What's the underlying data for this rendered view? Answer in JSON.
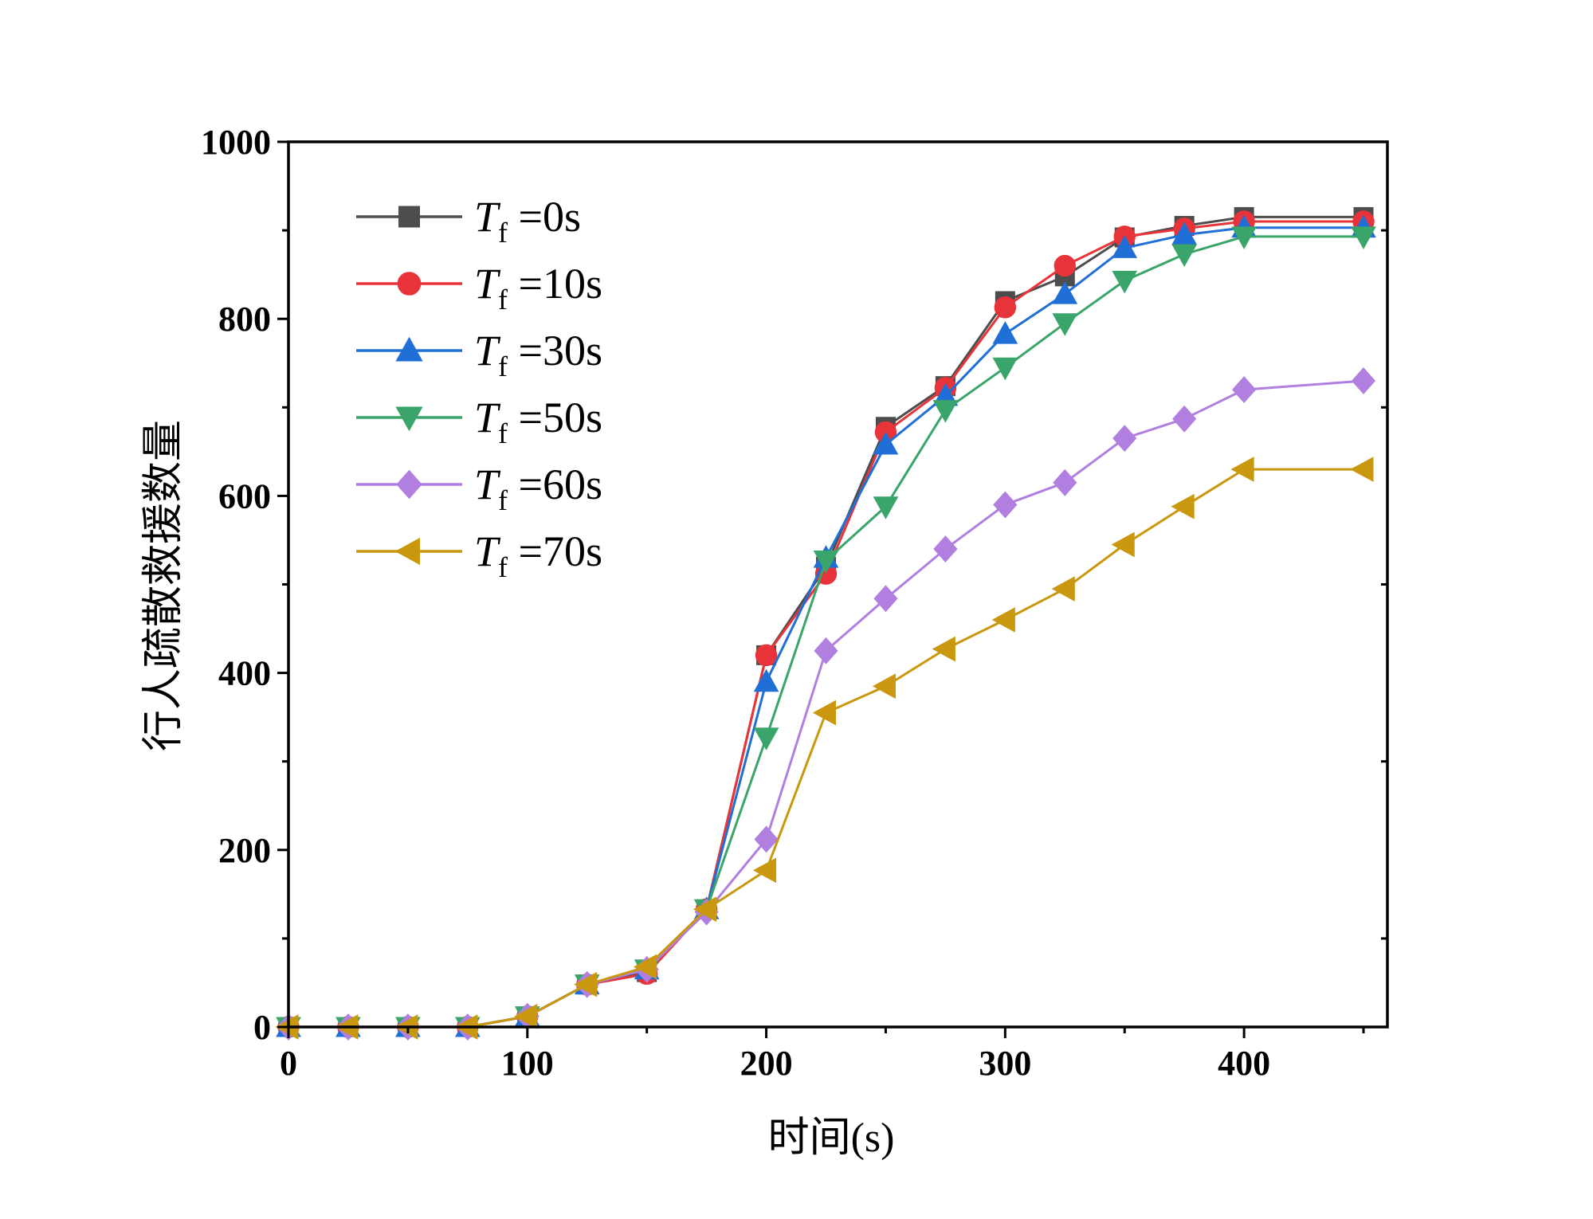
{
  "chart_data": {
    "type": "line",
    "title": "",
    "xlabel": "时间(s)",
    "ylabel": "行人疏散救援数量",
    "xlim": [
      0,
      460
    ],
    "ylim": [
      0,
      1000
    ],
    "xticks": [
      0,
      100,
      200,
      300,
      400
    ],
    "yticks": [
      0,
      200,
      400,
      600,
      800,
      1000
    ],
    "grid": false,
    "legend_position": "top-left",
    "x": [
      0,
      25,
      50,
      75,
      100,
      125,
      150,
      175,
      200,
      225,
      250,
      275,
      300,
      325,
      350,
      375,
      400,
      450
    ],
    "series": [
      {
        "name": "Tf =0s",
        "legend_var": "T",
        "legend_sub": "f",
        "legend_rest": " =0s",
        "color": "#4d4d4d",
        "marker": "square",
        "values": [
          0,
          0,
          0,
          0,
          12,
          48,
          62,
          133,
          420,
          520,
          678,
          724,
          820,
          848,
          892,
          905,
          915,
          915
        ]
      },
      {
        "name": "Tf =10s",
        "legend_var": "T",
        "legend_sub": "f",
        "legend_rest": " =10s",
        "color": "#e8333a",
        "marker": "circle",
        "values": [
          0,
          0,
          0,
          0,
          12,
          48,
          60,
          133,
          420,
          512,
          672,
          722,
          813,
          860,
          893,
          902,
          910,
          910
        ]
      },
      {
        "name": "Tf =30s",
        "legend_var": "T",
        "legend_sub": "f",
        "legend_rest": " =30s",
        "color": "#1f6fd6",
        "marker": "triangle-up",
        "values": [
          0,
          0,
          0,
          0,
          12,
          48,
          65,
          133,
          390,
          530,
          658,
          713,
          783,
          828,
          880,
          895,
          903,
          903
        ]
      },
      {
        "name": "Tf =50s",
        "legend_var": "T",
        "legend_sub": "f",
        "legend_rest": " =50s",
        "color": "#3aa56a",
        "marker": "triangle-down",
        "values": [
          0,
          0,
          0,
          0,
          12,
          48,
          65,
          133,
          327,
          527,
          588,
          697,
          745,
          795,
          843,
          873,
          893,
          893
        ]
      },
      {
        "name": "Tf =60s",
        "legend_var": "T",
        "legend_sub": "f",
        "legend_rest": " =60s",
        "color": "#b07fe0",
        "marker": "diamond",
        "values": [
          0,
          0,
          0,
          0,
          12,
          48,
          65,
          130,
          212,
          425,
          484,
          540,
          590,
          615,
          665,
          687,
          720,
          730
        ]
      },
      {
        "name": "Tf =70s",
        "legend_var": "T",
        "legend_sub": "f",
        "legend_rest": " =70s",
        "color": "#c9980e",
        "marker": "triangle-left",
        "values": [
          0,
          0,
          0,
          0,
          12,
          48,
          68,
          133,
          177,
          355,
          385,
          427,
          460,
          495,
          545,
          588,
          630,
          630
        ]
      }
    ]
  }
}
